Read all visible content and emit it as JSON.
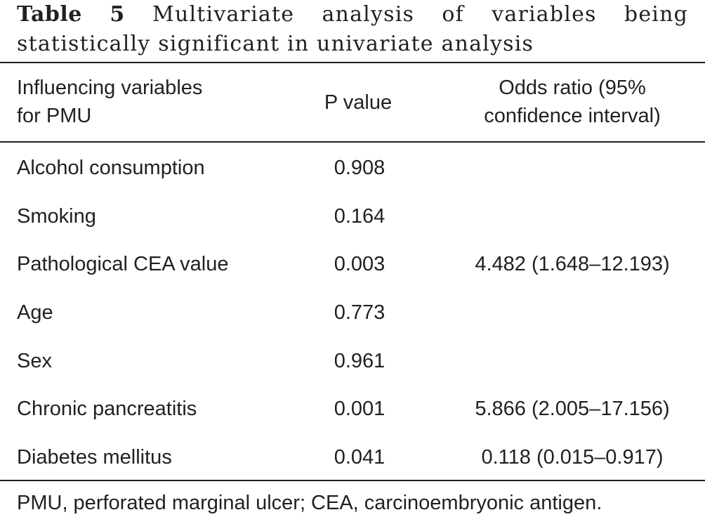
{
  "caption": {
    "label": "Table 5",
    "text": "Multivariate analysis of variables being statistically significant in univariate analysis"
  },
  "columns": {
    "variable_line1": "Influencing variables",
    "variable_line2": "for PMU",
    "p_value": "P value",
    "odds_ratio_line1": "Odds ratio (95%",
    "odds_ratio_line2": "confidence interval)"
  },
  "rows": [
    {
      "variable": "Alcohol consumption",
      "p_value": "0.908",
      "odds_ratio": ""
    },
    {
      "variable": "Smoking",
      "p_value": "0.164",
      "odds_ratio": ""
    },
    {
      "variable": "Pathological CEA value",
      "p_value": "0.003",
      "odds_ratio": "4.482 (1.648–12.193)"
    },
    {
      "variable": "Age",
      "p_value": "0.773",
      "odds_ratio": ""
    },
    {
      "variable": "Sex",
      "p_value": "0.961",
      "odds_ratio": ""
    },
    {
      "variable": "Chronic pancreatitis",
      "p_value": "0.001",
      "odds_ratio": "5.866 (2.005–17.156)"
    },
    {
      "variable": "Diabetes mellitus",
      "p_value": "0.041",
      "odds_ratio": "0.118 (0.015–0.917)"
    }
  ],
  "footnote": "PMU, perforated marginal ulcer; CEA, carcinoembryonic antigen."
}
